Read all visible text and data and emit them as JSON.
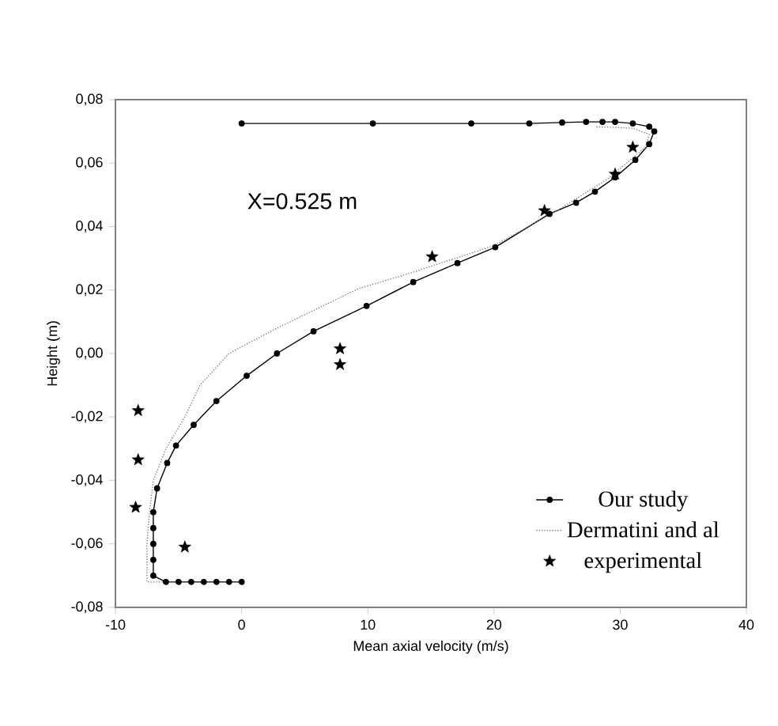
{
  "chart_data": {
    "type": "line",
    "xlabel": "Mean axial velocity (m/s)",
    "ylabel": "Height (m)",
    "annotations": [
      "X=0.525 m"
    ],
    "xlim": [
      -10,
      40
    ],
    "xticks": [
      -10,
      0,
      10,
      20,
      30,
      40
    ],
    "ylim": [
      -0.08,
      0.08
    ],
    "yticks": [
      {
        "value": -0.08,
        "label": "-0,08"
      },
      {
        "value": -0.06,
        "label": "-0,06"
      },
      {
        "value": -0.04,
        "label": "-0,04"
      },
      {
        "value": -0.02,
        "label": "-0,02"
      },
      {
        "value": 0.0,
        "label": "0,00"
      },
      {
        "value": 0.02,
        "label": "0,02"
      },
      {
        "value": 0.04,
        "label": "0,04"
      },
      {
        "value": 0.06,
        "label": "0,06"
      },
      {
        "value": 0.08,
        "label": "0,08"
      }
    ],
    "grid": false,
    "legend": "bottom right",
    "series": [
      {
        "name": "Our study",
        "color": "#000000",
        "marker": "circle",
        "line_style": "solid",
        "x": [
          0,
          10.4,
          18.2,
          22.8,
          25.4,
          27.3,
          28.6,
          29.6,
          31,
          32.3,
          32.7,
          32.3,
          31.2,
          29.6,
          28.0,
          26.5,
          24.4,
          20.1,
          17.1,
          13.6,
          9.9,
          5.7,
          2.8,
          0.4,
          -2,
          -3.8,
          -5.2,
          -5.9,
          -6.7,
          -7,
          -7,
          -7,
          -7,
          -7,
          -6,
          -5,
          -4,
          -3,
          -2,
          -1,
          0
        ],
        "values": [
          0.0725,
          0.0725,
          0.0725,
          0.0725,
          0.0728,
          0.073,
          0.073,
          0.073,
          0.0725,
          0.0715,
          0.07,
          0.066,
          0.061,
          0.0555,
          0.051,
          0.0475,
          0.044,
          0.0335,
          0.0285,
          0.0225,
          0.015,
          0.007,
          0.0,
          -0.007,
          -0.015,
          -0.0225,
          -0.029,
          -0.0345,
          -0.0425,
          -0.05,
          -0.055,
          -0.06,
          -0.065,
          -0.07,
          -0.072,
          -0.072,
          -0.072,
          -0.072,
          -0.072,
          -0.072,
          -0.072
        ]
      },
      {
        "name": "Dermatini and al",
        "color": "#808080",
        "marker": "none",
        "line_style": "dotted",
        "x": [
          -5,
          -7.5,
          -7.5,
          -7.3,
          -7.0,
          -6.0,
          -4.5,
          -3.3,
          -1.0,
          2.8,
          9.3,
          13.5,
          20.0,
          25.0,
          29.0,
          32.0,
          32.3,
          31.0,
          28.0
        ],
        "values": [
          -0.072,
          -0.072,
          -0.06,
          -0.05,
          -0.04,
          -0.03,
          -0.02,
          -0.01,
          0.0,
          0.008,
          0.0205,
          0.0255,
          0.034,
          0.045,
          0.055,
          0.065,
          0.069,
          0.071,
          0.0715
        ]
      },
      {
        "name": "experimental",
        "type": "scatter",
        "color": "#000000",
        "marker": "star",
        "x": [
          -8.2,
          -8.2,
          -8.4,
          -4.5,
          7.8,
          7.8,
          15.1,
          24.0,
          29.6,
          31.0
        ],
        "values": [
          -0.018,
          -0.0335,
          -0.0485,
          -0.061,
          0.0015,
          -0.0035,
          0.0305,
          0.045,
          0.0565,
          0.065
        ]
      }
    ]
  }
}
